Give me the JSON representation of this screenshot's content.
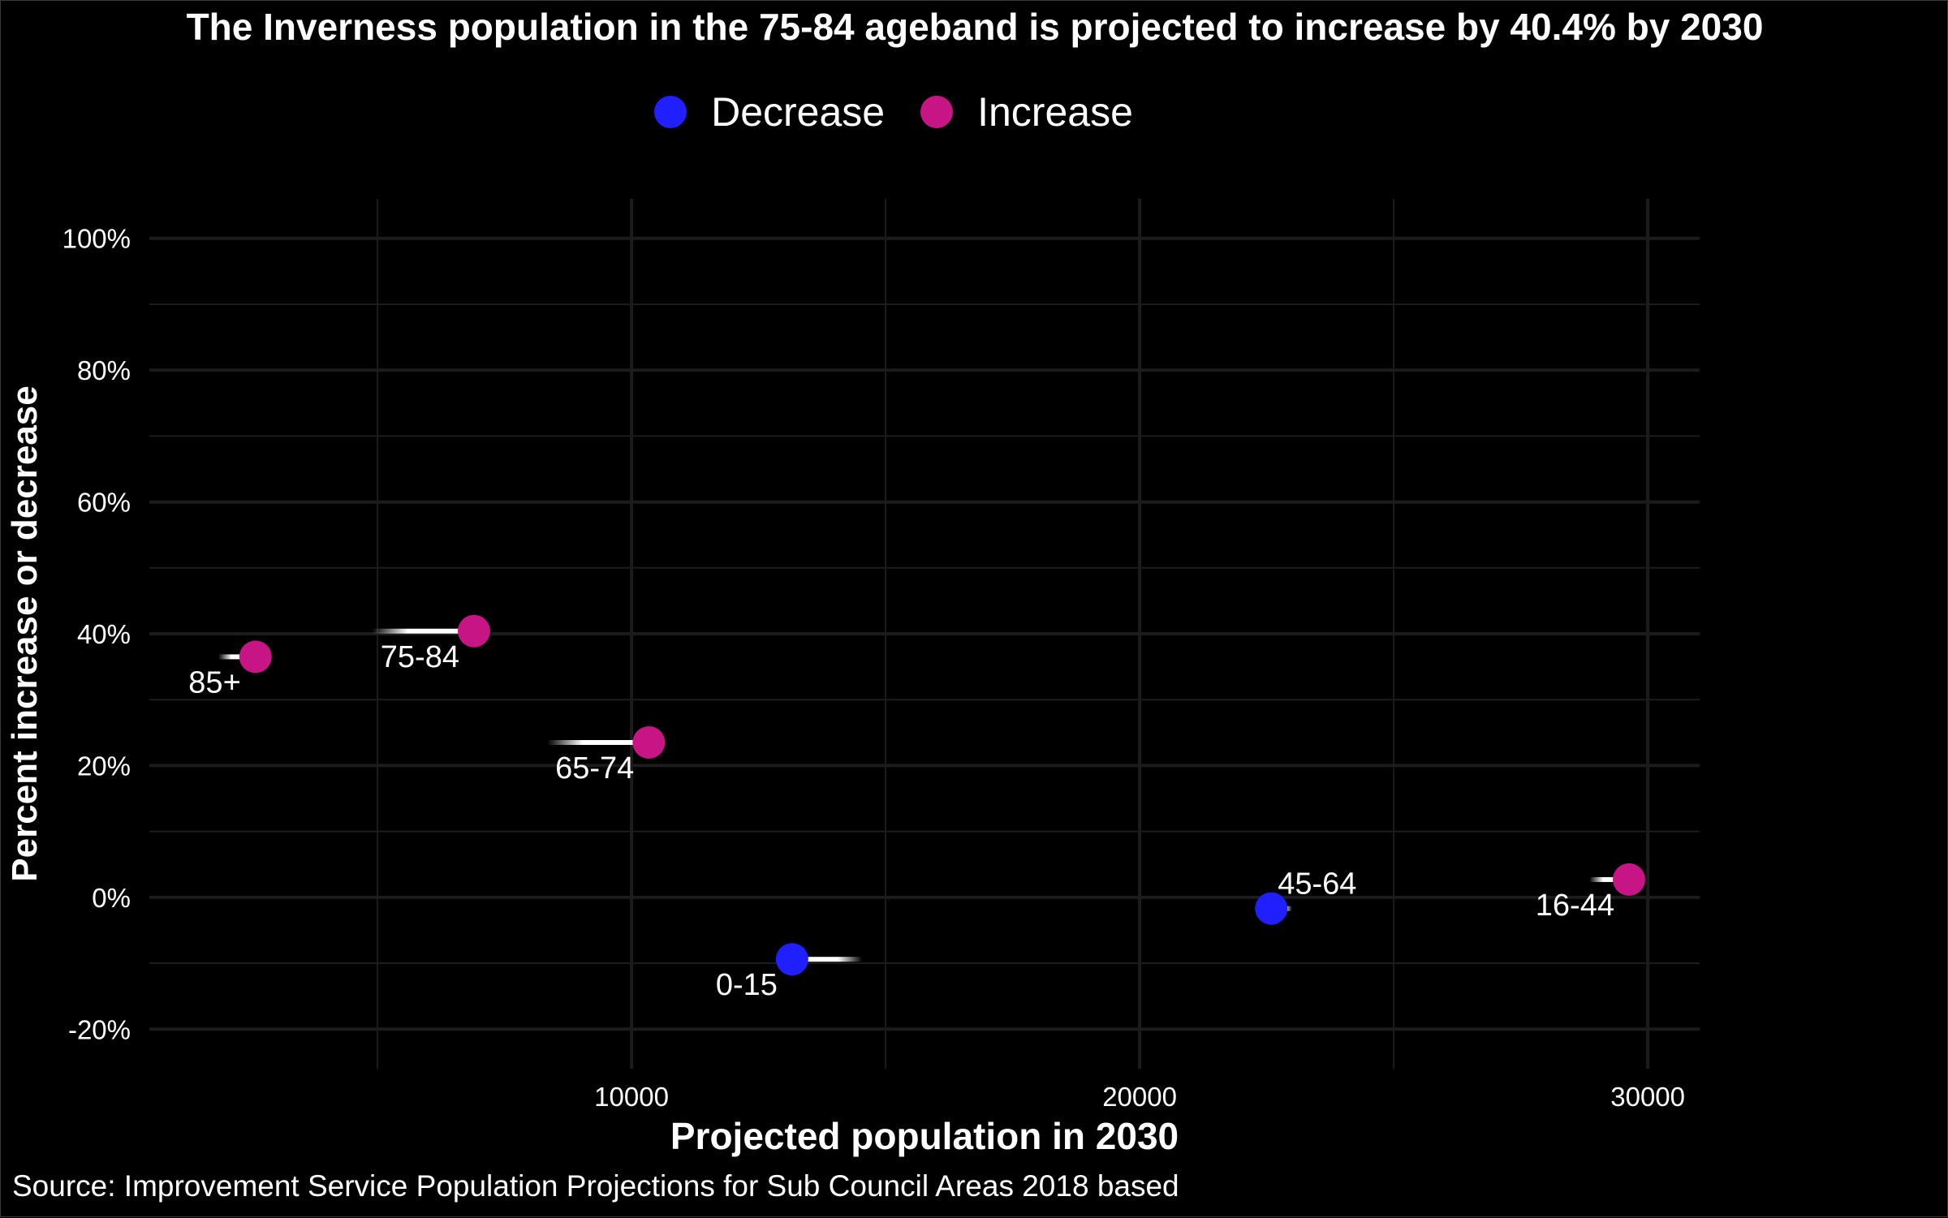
{
  "chart_data": {
    "type": "scatter",
    "title": "The Inverness population in the 75-84 ageband is projected to increase by 40.4% by 2030",
    "xlabel": "Projected population in 2030",
    "ylabel": "Percent increase or decrease",
    "caption": "Source: Improvement Service Population Projections for Sub Council Areas 2018 based",
    "xlim": [
      511,
      31020
    ],
    "ylim": [
      -26,
      106
    ],
    "x_ticks": [
      {
        "value": 10000,
        "label": "10000"
      },
      {
        "value": 20000,
        "label": "20000"
      },
      {
        "value": 30000,
        "label": "30000"
      }
    ],
    "x_minor": [
      5000,
      15000,
      25000
    ],
    "y_ticks": [
      {
        "value": -20,
        "label": "-20%"
      },
      {
        "value": 0,
        "label": "0%"
      },
      {
        "value": 20,
        "label": "20%"
      },
      {
        "value": 40,
        "label": "40%"
      },
      {
        "value": 60,
        "label": "60%"
      },
      {
        "value": 80,
        "label": "80%"
      },
      {
        "value": 100,
        "label": "100%"
      }
    ],
    "y_minor": [
      -10,
      10,
      30,
      50,
      70,
      90
    ],
    "grid": true,
    "legend": {
      "position": "top",
      "entries": [
        {
          "name": "Decrease",
          "color": "#2020FF"
        },
        {
          "name": "Increase",
          "color": "#C71585"
        }
      ]
    },
    "points": [
      {
        "label": "85+",
        "x": 2600,
        "y": 36.5,
        "x_2018": 1870,
        "group": "Increase"
      },
      {
        "label": "75-84",
        "x": 6900,
        "y": 40.4,
        "x_2018": 4900,
        "group": "Increase"
      },
      {
        "label": "65-74",
        "x": 10340,
        "y": 23.5,
        "x_2018": 8340,
        "group": "Increase"
      },
      {
        "label": "0-15",
        "x": 13160,
        "y": -9.4,
        "x_2018": 14540,
        "group": "Decrease"
      },
      {
        "label": "45-64",
        "x": 22590,
        "y": -1.7,
        "x_2018": 23000,
        "group": "Decrease"
      },
      {
        "label": "16-44",
        "x": 29630,
        "y": 2.7,
        "x_2018": 28850,
        "group": "Increase"
      }
    ]
  },
  "colors": {
    "background": "#000000",
    "grid": "#1c1c1c",
    "text": "#FFFFFF",
    "decrease": "#2020FF",
    "increase": "#C71585"
  }
}
